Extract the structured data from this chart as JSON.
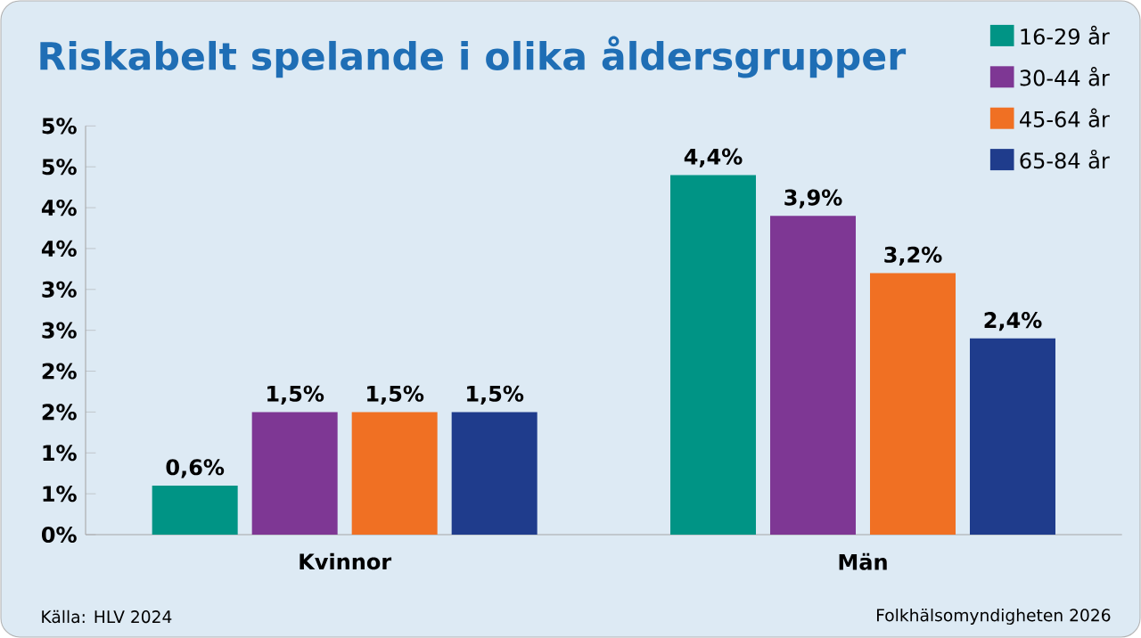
{
  "chart_data": {
    "type": "bar",
    "title": "Riskabelt spelande i olika åldersgrupper",
    "categories": [
      "Kvinnor",
      "Män"
    ],
    "series": [
      {
        "name": "16-29 år",
        "color": "#009485",
        "values": [
          0.6,
          4.4
        ],
        "value_labels": [
          "0,6%",
          "4,4%"
        ]
      },
      {
        "name": "30-44 år",
        "color": "#7e3794",
        "values": [
          1.5,
          3.9
        ],
        "value_labels": [
          "1,5%",
          "3,9%"
        ]
      },
      {
        "name": "45-64 år",
        "color": "#f07023",
        "values": [
          1.5,
          3.2
        ],
        "value_labels": [
          "1,5%",
          "3,2%"
        ]
      },
      {
        "name": "65-84 år",
        "color": "#1f3c8c",
        "values": [
          1.5,
          2.4
        ],
        "value_labels": [
          "1,5%",
          "2,4%"
        ]
      }
    ],
    "ylim": [
      0,
      5
    ],
    "yticks": [
      {
        "value": 0,
        "label": "0%"
      },
      {
        "value": 0.5,
        "label": "1%"
      },
      {
        "value": 1,
        "label": "1%"
      },
      {
        "value": 1.5,
        "label": "2%"
      },
      {
        "value": 2,
        "label": "2%"
      },
      {
        "value": 2.5,
        "label": "3%"
      },
      {
        "value": 3,
        "label": "3%"
      },
      {
        "value": 3.5,
        "label": "4%"
      },
      {
        "value": 4,
        "label": "4%"
      },
      {
        "value": 4.5,
        "label": "5%"
      },
      {
        "value": 5,
        "label": "5%"
      }
    ],
    "legend": "top right",
    "annotations": [
      "Källa: HLV 2024",
      "Folkhälsomyndigheten 2026"
    ]
  }
}
